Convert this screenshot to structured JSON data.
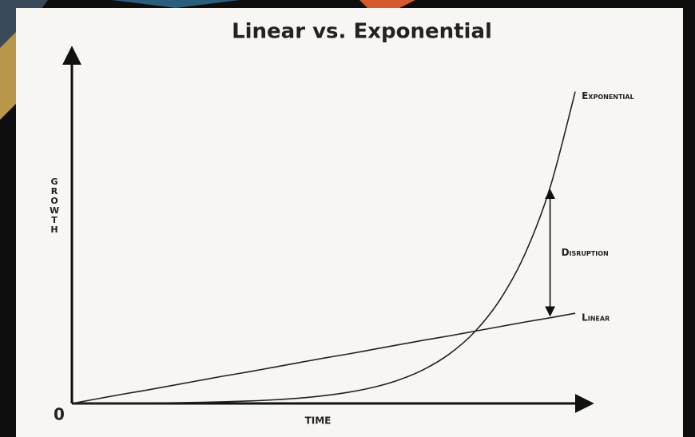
{
  "chart_data": {
    "type": "line",
    "title": "Linear vs. Exponential",
    "x_label": "TIME",
    "y_label": "GROWTH",
    "x": [
      0,
      0.5,
      1,
      1.5,
      2,
      2.5,
      3,
      3.5,
      4,
      4.5,
      5,
      5.5,
      6,
      6.5,
      7,
      7.5,
      8,
      8.5,
      9,
      9.5,
      10
    ],
    "series": [
      {
        "name": "Exponential",
        "color": "#222222",
        "values": [
          0,
          0.0025,
          0.0061,
          0.0114,
          0.019,
          0.0299,
          0.0457,
          0.0685,
          0.1014,
          0.149,
          0.218,
          0.317,
          0.46,
          0.667,
          0.966,
          1.398,
          2.02,
          2.92,
          4.22,
          6.1,
          8.81
        ]
      },
      {
        "name": "Linear",
        "color": "#222222",
        "values": [
          0,
          0.13,
          0.26,
          0.38,
          0.51,
          0.64,
          0.77,
          0.89,
          1.02,
          1.15,
          1.28,
          1.4,
          1.53,
          1.66,
          1.79,
          1.91,
          2.04,
          2.17,
          2.3,
          2.42,
          2.55
        ]
      }
    ],
    "annotation": "Disruption",
    "xlim": [
      0,
      10.3
    ],
    "ylim": [
      0,
      10
    ],
    "xticks": [
      0
    ]
  }
}
